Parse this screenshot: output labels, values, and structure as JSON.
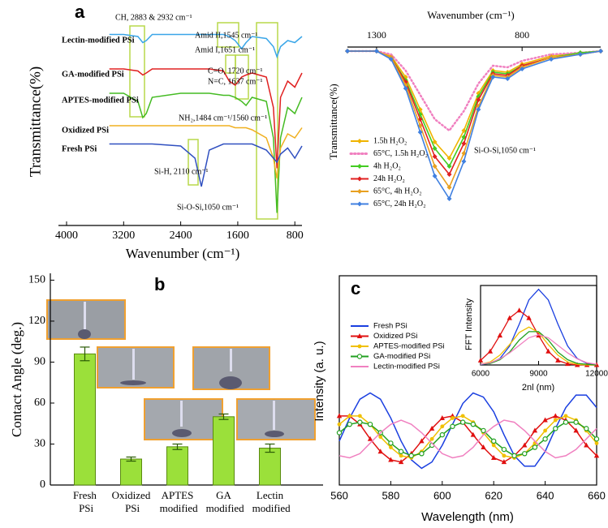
{
  "chart_data": [
    {
      "type": "line",
      "panel": "a",
      "xlabel": "Wavenumber (cm⁻¹)",
      "ylabel": "Transmittance(%)",
      "xlim": [
        4000,
        700
      ],
      "ylim": [
        0,
        100
      ],
      "xticks": [
        4000,
        3200,
        2400,
        1600,
        800
      ],
      "x": [
        3400,
        3200,
        3000,
        2932,
        2883,
        2800,
        2400,
        2200,
        2110,
        2000,
        1800,
        1720,
        1637,
        1545,
        1484,
        1400,
        1200,
        1100,
        1050,
        1000,
        900,
        800,
        700
      ],
      "series": [
        {
          "name": "Lectin-modified PSi",
          "color": "#3aa6e8",
          "values": [
            91,
            91,
            90,
            87,
            88,
            91,
            91,
            91,
            91,
            91,
            91,
            90,
            88,
            84,
            87,
            90,
            89,
            85,
            80,
            85,
            88,
            87,
            90
          ]
        },
        {
          "name": "GA-modified PSi",
          "color": "#e02020",
          "values": [
            74,
            74,
            73,
            71,
            72,
            74,
            74,
            74,
            74,
            74,
            73,
            68,
            66,
            70,
            71,
            72,
            70,
            55,
            25,
            60,
            68,
            65,
            72
          ]
        },
        {
          "name": "APTES-modified PSi",
          "color": "#44bb22",
          "values": [
            62,
            62,
            58,
            50,
            52,
            60,
            62,
            62,
            62,
            62,
            61,
            61,
            60,
            58,
            56,
            60,
            58,
            40,
            3,
            40,
            55,
            52,
            60
          ]
        },
        {
          "name": "Oxidized PSi",
          "color": "#f0b020",
          "values": [
            46,
            46,
            46,
            46,
            46,
            46,
            46,
            46,
            46,
            46,
            46,
            46,
            45,
            45,
            45,
            44,
            40,
            30,
            20,
            35,
            42,
            40,
            45
          ]
        },
        {
          "name": "Fresh PSi",
          "color": "#3050c0",
          "values": [
            37,
            37,
            37,
            37,
            37,
            37,
            36,
            30,
            16,
            34,
            37,
            37,
            37,
            37,
            37,
            37,
            34,
            30,
            28,
            32,
            35,
            30,
            36
          ]
        }
      ],
      "annotations": [
        "CH, 2883 & 2932 cm⁻¹",
        "Amid II,1545 cm⁻¹",
        "Amid I,1651 cm⁻¹",
        "C=O, 1720 cm⁻¹",
        "N=C, 1637 cm⁻¹",
        "NH₂,1484 cm⁻¹/1560 cm⁻¹",
        "Si-H, 2110 cm⁻¹",
        "Si-O-Si,1050 cm⁻¹"
      ]
    },
    {
      "type": "line",
      "xlabel": "Wavenumber (cm⁻¹)",
      "ylabel": "Transmittance(%)",
      "xlim": [
        1400,
        530
      ],
      "ylim": [
        0,
        100
      ],
      "xticks": [
        1300,
        800
      ],
      "markers": true,
      "x": [
        1400,
        1300,
        1250,
        1200,
        1150,
        1100,
        1050,
        1000,
        950,
        900,
        850,
        800,
        700,
        600,
        530
      ],
      "series": [
        {
          "name": "1.5h H₂O₂",
          "color": "#f0b400",
          "values": [
            96,
            96,
            93,
            80,
            60,
            40,
            30,
            47,
            70,
            84,
            83,
            88,
            93,
            95,
            96
          ]
        },
        {
          "name": "65°C, 1.5h H₂O₂",
          "color": "#f080c0",
          "line_style": "dotted",
          "values": [
            96,
            96,
            94,
            84,
            69,
            54,
            47,
            59,
            76,
            87,
            86,
            90,
            94,
            95,
            96
          ]
        },
        {
          "name": "4h H₂O₂",
          "color": "#44cc22",
          "values": [
            96,
            96,
            92,
            78,
            57,
            36,
            25,
            43,
            68,
            83,
            82,
            87,
            92,
            95,
            96
          ]
        },
        {
          "name": "24h H₂O₂",
          "color": "#e02020",
          "values": [
            96,
            96,
            92,
            77,
            54,
            31,
            20,
            39,
            66,
            82,
            81,
            87,
            92,
            94,
            96
          ]
        },
        {
          "name": "65°C, 4h H₂O₂",
          "color": "#e8a020",
          "values": [
            96,
            96,
            92,
            75,
            50,
            25,
            12,
            33,
            62,
            81,
            80,
            86,
            92,
            94,
            96
          ]
        },
        {
          "name": "65°C, 24h H₂O₂",
          "color": "#4080e0",
          "values": [
            96,
            96,
            91,
            73,
            46,
            19,
            5,
            28,
            60,
            80,
            79,
            85,
            91,
            94,
            96
          ]
        }
      ],
      "annotations": [
        "Si-O-Si,1050 cm⁻¹"
      ]
    },
    {
      "type": "bar",
      "panel": "b",
      "ylabel": "Contact Angle (deg.)",
      "categories": [
        "Fresh PSi",
        "Oxidized PSi",
        "APTES modified",
        "GA modified",
        "Lectin modified"
      ],
      "values": [
        96,
        19,
        28,
        50,
        27
      ],
      "errors": [
        5,
        1.5,
        2,
        2,
        3
      ],
      "color": "#9be03a",
      "ylim": [
        0,
        155
      ],
      "yticks": [
        0,
        30,
        60,
        90,
        120,
        150
      ]
    },
    {
      "type": "line",
      "panel": "c",
      "xlabel": "Wavelength (nm)",
      "ylabel": "Intensity (a. u.)",
      "xlim": [
        560,
        660
      ],
      "ylim": [
        0,
        100
      ],
      "xticks": [
        560,
        580,
        600,
        620,
        640,
        660
      ],
      "x": [
        560,
        564,
        568,
        572,
        576,
        580,
        584,
        588,
        592,
        596,
        600,
        604,
        608,
        612,
        616,
        620,
        624,
        628,
        632,
        636,
        640,
        644,
        648,
        652,
        656,
        660
      ],
      "series": [
        {
          "name": "Fresh PSi",
          "color": "#1a3fe0",
          "marker": "none",
          "values": [
            21,
            32,
            41,
            44,
            41,
            32,
            21,
            12,
            8,
            11,
            19,
            29,
            39,
            44,
            42,
            35,
            24,
            14,
            9,
            9,
            16,
            27,
            37,
            43,
            43,
            37
          ]
        },
        {
          "name": "Oxidized PSi",
          "color": "#e01010",
          "marker": "triangle",
          "values": [
            33,
            33,
            29,
            22,
            16,
            12,
            11,
            15,
            21,
            27,
            32,
            33,
            30,
            24,
            18,
            13,
            11,
            14,
            19,
            26,
            31,
            33,
            31,
            26,
            19,
            14
          ]
        },
        {
          "name": "APTES-modified PSi",
          "color": "#f0c000",
          "marker": "circle",
          "values": [
            29,
            33,
            33,
            29,
            23,
            18,
            14,
            13,
            16,
            22,
            28,
            32,
            33,
            30,
            25,
            19,
            14,
            13,
            15,
            20,
            26,
            31,
            33,
            31,
            26,
            20
          ]
        },
        {
          "name": "GA-modified PSi",
          "color": "#22a020",
          "marker": "open-circle",
          "values": [
            25,
            29,
            30,
            29,
            25,
            20,
            16,
            14,
            15,
            19,
            24,
            28,
            30,
            29,
            26,
            21,
            17,
            14,
            15,
            18,
            22,
            27,
            30,
            30,
            27,
            22
          ]
        },
        {
          "name": "Lectin-modified PSi",
          "color": "#f080c0",
          "marker": "none",
          "values": [
            14,
            13,
            15,
            20,
            25,
            29,
            31,
            29,
            25,
            20,
            15,
            13,
            14,
            18,
            24,
            28,
            31,
            30,
            26,
            21,
            16,
            13,
            14,
            17,
            22,
            27
          ]
        }
      ]
    },
    {
      "type": "line",
      "xlabel": "2nl (nm)",
      "ylabel": "FFT Intensity",
      "xlim": [
        6000,
        12000
      ],
      "ylim": [
        0,
        1.05
      ],
      "xticks": [
        6000,
        9000,
        12000
      ],
      "x": [
        6000,
        6500,
        7000,
        7500,
        8000,
        8500,
        9000,
        9500,
        10000,
        10500,
        11000,
        11500,
        12000
      ],
      "series": [
        {
          "color": "#1a3fe0",
          "marker": "none",
          "values": [
            0.004,
            0.021,
            0.085,
            0.25,
            0.54,
            0.86,
            1,
            0.86,
            0.54,
            0.25,
            0.085,
            0.02,
            0
          ]
        },
        {
          "color": "#e01010",
          "marker": "triangle",
          "values": [
            0.06,
            0.18,
            0.39,
            0.62,
            0.72,
            0.62,
            0.39,
            0.18,
            0.06,
            0.015,
            0,
            0,
            0
          ]
        },
        {
          "color": "#f0c000",
          "marker": "none",
          "values": [
            0.01,
            0.04,
            0.13,
            0.27,
            0.43,
            0.5,
            0.43,
            0.27,
            0.13,
            0.04,
            0.01,
            0,
            0
          ]
        },
        {
          "color": "#22a020",
          "marker": "none",
          "values": [
            0.01,
            0.02,
            0.07,
            0.17,
            0.33,
            0.44,
            0.44,
            0.33,
            0.17,
            0.07,
            0.02,
            0.01,
            0
          ]
        },
        {
          "color": "#f080c0",
          "marker": "none",
          "values": [
            0.01,
            0.03,
            0.08,
            0.16,
            0.26,
            0.36,
            0.4,
            0.36,
            0.26,
            0.16,
            0.08,
            0.03,
            0.01
          ]
        }
      ]
    }
  ]
}
